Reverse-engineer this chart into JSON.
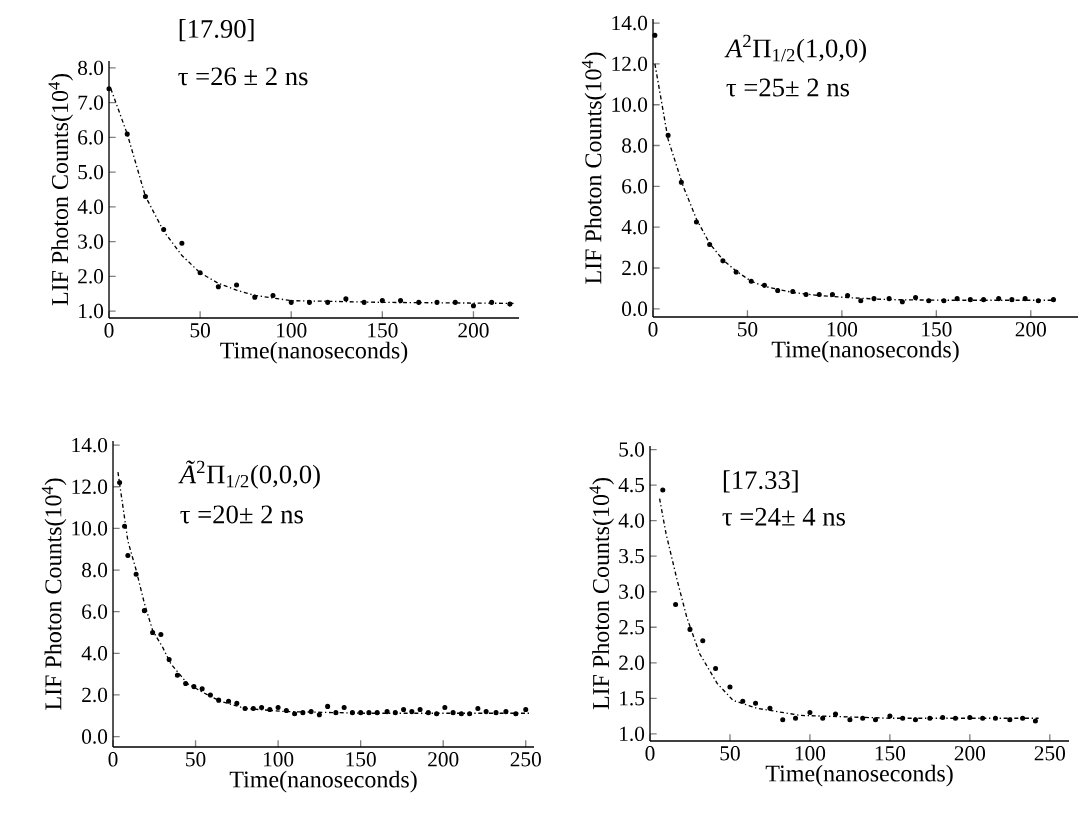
{
  "chart_data": [
    {
      "type": "scatter",
      "xlabel": "Time(nanoseconds)",
      "ylabel": "LIF Photon Counts(10$^{4}$)",
      "annotations": [
        "[17.90]",
        "τ =26 ± 2 ns"
      ],
      "xlim": [
        0,
        225
      ],
      "ylim": [
        0.8,
        8.2
      ],
      "xticks": [
        0,
        50,
        100,
        150,
        200
      ],
      "yticks": [
        {
          "value": 1,
          "label": "1.0"
        },
        {
          "value": 2,
          "label": "2.0"
        },
        {
          "value": 3,
          "label": "3.0"
        },
        {
          "value": 4,
          "label": "4.0"
        },
        {
          "value": 5,
          "label": "5.0"
        },
        {
          "value": 6,
          "label": "6.0"
        },
        {
          "value": 7,
          "label": "7.0"
        },
        {
          "value": 8,
          "label": "8.0"
        }
      ],
      "series": [
        {
          "color": "#000000",
          "marker": "circle",
          "x": [
            0,
            10,
            20,
            30,
            40,
            50,
            60,
            70,
            80,
            90,
            100,
            110,
            120,
            130,
            140,
            150,
            160,
            170,
            180,
            190,
            200,
            210,
            220
          ],
          "values": [
            7.4,
            6.1,
            4.3,
            3.35,
            2.95,
            2.1,
            1.7,
            1.75,
            1.4,
            1.45,
            1.25,
            1.25,
            1.25,
            1.35,
            1.25,
            1.3,
            1.3,
            1.25,
            1.25,
            1.25,
            1.15,
            1.25,
            1.2
          ]
        },
        {
          "type": "line",
          "color": "#000000",
          "marker": "none",
          "line_style": "dashed",
          "x": [
            1,
            10,
            20,
            30,
            40,
            50,
            60,
            70,
            80,
            100,
            150,
            222
          ],
          "values": [
            7.4,
            6.1,
            4.3,
            3.3,
            2.6,
            2.1,
            1.8,
            1.6,
            1.45,
            1.3,
            1.25,
            1.22
          ]
        }
      ]
    },
    {
      "type": "scatter",
      "xlabel": "Time(nanoseconds)",
      "ylabel": "LIF Photon Counts(10$^{4}$)",
      "annotations": [
        "*A*$^{2}$Π$_{1/2}$(1,0,0)",
        "τ =25± 2 ns"
      ],
      "xlim": [
        0,
        225
      ],
      "ylim": [
        -0.4,
        14.2
      ],
      "xticks": [
        0,
        50,
        100,
        150,
        200
      ],
      "yticks": [
        {
          "value": 0,
          "label": "0.0"
        },
        {
          "value": 2,
          "label": "2.0"
        },
        {
          "value": 4,
          "label": "4.0"
        },
        {
          "value": 6,
          "label": "6.0"
        },
        {
          "value": 8,
          "label": "8.0"
        },
        {
          "value": 10,
          "label": "10.0"
        },
        {
          "value": 12,
          "label": "12.0"
        },
        {
          "value": 14,
          "label": "14.0"
        }
      ],
      "series": [
        {
          "color": "#000000",
          "marker": "circle",
          "x": [
            1,
            8,
            15,
            23,
            30,
            37,
            44,
            52,
            59,
            66,
            74,
            81,
            88,
            95,
            103,
            110,
            117,
            125,
            132,
            139,
            146,
            154,
            161,
            168,
            175,
            183,
            190,
            197,
            204,
            212
          ],
          "values": [
            13.4,
            8.5,
            6.2,
            4.25,
            3.15,
            2.35,
            1.8,
            1.35,
            1.15,
            0.9,
            0.85,
            0.7,
            0.7,
            0.7,
            0.65,
            0.4,
            0.5,
            0.5,
            0.35,
            0.55,
            0.4,
            0.4,
            0.5,
            0.45,
            0.45,
            0.5,
            0.45,
            0.5,
            0.4,
            0.45
          ]
        },
        {
          "type": "line",
          "color": "#000000",
          "marker": "none",
          "line_style": "dashed",
          "x": [
            1,
            8,
            16,
            23,
            30,
            37,
            44,
            52,
            59,
            74,
            88,
            103,
            125,
            154,
            212
          ],
          "values": [
            12.0,
            8.3,
            6.0,
            4.4,
            3.2,
            2.4,
            1.85,
            1.35,
            1.1,
            0.8,
            0.65,
            0.55,
            0.45,
            0.42,
            0.42
          ]
        }
      ]
    },
    {
      "type": "scatter",
      "xlabel": "Time(nanoseconds)",
      "ylabel": "LIF Photon Counts(10$^{4}$)",
      "annotations": [
        "*Ã*$^{2}$Π$_{1/2}$(0,0,0)",
        "τ =20± 2 ns"
      ],
      "xlim": [
        0,
        255
      ],
      "ylim": [
        -0.5,
        14.2
      ],
      "xticks": [
        0,
        50,
        100,
        150,
        200,
        250
      ],
      "yticks": [
        {
          "value": 0,
          "label": "0.0"
        },
        {
          "value": 2,
          "label": "2.0"
        },
        {
          "value": 4,
          "label": "4.0"
        },
        {
          "value": 6,
          "label": "6.0"
        },
        {
          "value": 8,
          "label": "8.0"
        },
        {
          "value": 10,
          "label": "10.0"
        },
        {
          "value": 12,
          "label": "12.0"
        },
        {
          "value": 14,
          "label": "14.0"
        }
      ],
      "series": [
        {
          "color": "#000000",
          "marker": "circle",
          "x": [
            4,
            7,
            9,
            14,
            19,
            24,
            29,
            34,
            39,
            44,
            49,
            54,
            59,
            64,
            70,
            75,
            80,
            85,
            90,
            95,
            100,
            105,
            110,
            115,
            120,
            125,
            130,
            135,
            140,
            145,
            150,
            155,
            160,
            166,
            171,
            176,
            181,
            186,
            191,
            196,
            201,
            206,
            211,
            216,
            221,
            226,
            232,
            238,
            244,
            250
          ],
          "values": [
            12.2,
            10.1,
            8.7,
            7.8,
            6.05,
            5.0,
            4.9,
            3.7,
            2.95,
            2.55,
            2.4,
            2.3,
            2.0,
            1.75,
            1.7,
            1.6,
            1.35,
            1.35,
            1.4,
            1.3,
            1.4,
            1.25,
            1.1,
            1.15,
            1.2,
            1.05,
            1.45,
            1.15,
            1.4,
            1.15,
            1.15,
            1.15,
            1.15,
            1.2,
            1.15,
            1.3,
            1.2,
            1.3,
            1.15,
            1.1,
            1.4,
            1.15,
            1.1,
            1.1,
            1.35,
            1.2,
            1.15,
            1.2,
            1.1,
            1.3
          ]
        },
        {
          "type": "line",
          "color": "#000000",
          "marker": "none",
          "line_style": "dashed",
          "x": [
            3,
            9,
            14,
            19,
            24,
            30,
            35,
            45,
            55,
            65,
            80,
            105,
            154,
            253
          ],
          "values": [
            12.7,
            9.4,
            8.0,
            6.4,
            5.1,
            4.3,
            3.5,
            2.55,
            2.1,
            1.7,
            1.35,
            1.2,
            1.12,
            1.12
          ]
        }
      ]
    },
    {
      "type": "scatter",
      "xlabel": "Time(nanoseconds)",
      "ylabel": "LIF Photon Counts(10$^{4}$)",
      "annotations": [
        "[17.33]",
        "τ =24± 4 ns"
      ],
      "xlim": [
        0,
        262
      ],
      "ylim": [
        0.9,
        5.05
      ],
      "xticks": [
        0,
        50,
        100,
        150,
        200,
        250
      ],
      "yticks": [
        {
          "value": 1,
          "label": "1.0"
        },
        {
          "value": 1.5,
          "label": "1.5"
        },
        {
          "value": 2,
          "label": "2.0"
        },
        {
          "value": 2.5,
          "label": "2.5"
        },
        {
          "value": 3,
          "label": "3.0"
        },
        {
          "value": 3.5,
          "label": "3.5"
        },
        {
          "value": 4,
          "label": "4.0"
        },
        {
          "value": 4.5,
          "label": "4.5"
        },
        {
          "value": 5,
          "label": "5.0"
        }
      ],
      "series": [
        {
          "color": "#000000",
          "marker": "circle",
          "x": [
            8,
            16,
            25,
            33,
            41,
            50,
            58,
            66,
            75,
            83,
            91,
            100,
            108,
            116,
            125,
            133,
            141,
            150,
            158,
            166,
            175,
            183,
            191,
            200,
            208,
            216,
            225,
            233,
            241
          ],
          "values": [
            4.43,
            2.82,
            2.47,
            2.31,
            1.92,
            1.66,
            1.46,
            1.43,
            1.36,
            1.2,
            1.22,
            1.3,
            1.22,
            1.28,
            1.2,
            1.22,
            1.2,
            1.25,
            1.22,
            1.2,
            1.22,
            1.23,
            1.22,
            1.23,
            1.22,
            1.22,
            1.2,
            1.22,
            1.18
          ]
        },
        {
          "type": "line",
          "color": "#000000",
          "marker": "none",
          "line_style": "dashed",
          "x": [
            6,
            10,
            17,
            23,
            31,
            42,
            52,
            67,
            94,
            150,
            243
          ],
          "values": [
            4.31,
            3.82,
            3.16,
            2.64,
            2.13,
            1.71,
            1.47,
            1.36,
            1.26,
            1.22,
            1.22
          ]
        }
      ]
    }
  ]
}
